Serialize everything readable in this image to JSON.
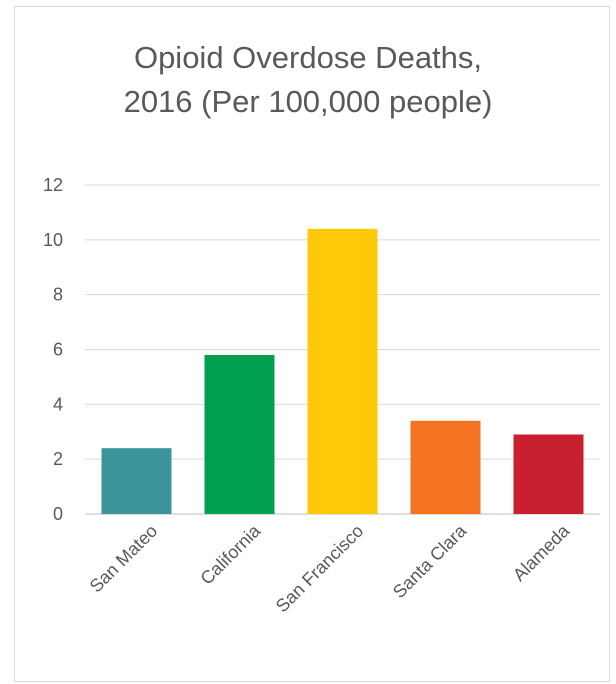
{
  "chart_data": {
    "type": "bar",
    "title_lines": [
      "Opioid Overdose Deaths,",
      "2016 (Per 100,000 people)"
    ],
    "xlabel": "",
    "ylabel": "",
    "categories": [
      "San Mateo",
      "California",
      "San Francisco",
      "Santa Clara",
      "Alameda"
    ],
    "values": [
      2.4,
      5.8,
      10.4,
      3.4,
      2.9
    ],
    "colors": [
      "#3a9499",
      "#00a050",
      "#ffc90a",
      "#f47321",
      "#c8202f"
    ],
    "ylim": [
      0,
      12
    ],
    "yticks": [
      "0",
      "2",
      "4",
      "6",
      "8",
      "10",
      "12"
    ],
    "grid": true,
    "legend": "none"
  }
}
